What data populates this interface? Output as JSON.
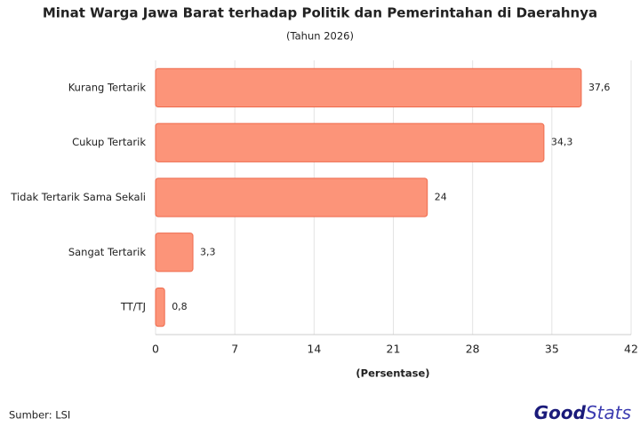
{
  "chart_data": {
    "type": "barh",
    "title": "Minat Warga Jawa Barat terhadap Politik dan Pemerintahan di Daerahnya",
    "subtitle": "(Tahun 2026)",
    "x_label": "(Persentase)",
    "categories": [
      "Kurang Tertarik",
      "Cukup Tertarik",
      "Tidak Tertarik Sama Sekali",
      "Sangat Tertarik",
      "TT/TJ"
    ],
    "values": [
      37.6,
      34.3,
      24,
      3.3,
      0.8
    ],
    "value_labels": [
      "37,6",
      "34,3",
      "24",
      "3,3",
      "0,8"
    ],
    "color": "#fc9479",
    "edge_color": "#ee6a4c",
    "xlim": [
      0,
      42
    ],
    "xticks": [
      0,
      7,
      14,
      21,
      28,
      35,
      42
    ],
    "grid": true,
    "source": "Sumber: LSI",
    "logo": [
      "Good",
      "Stats"
    ]
  }
}
